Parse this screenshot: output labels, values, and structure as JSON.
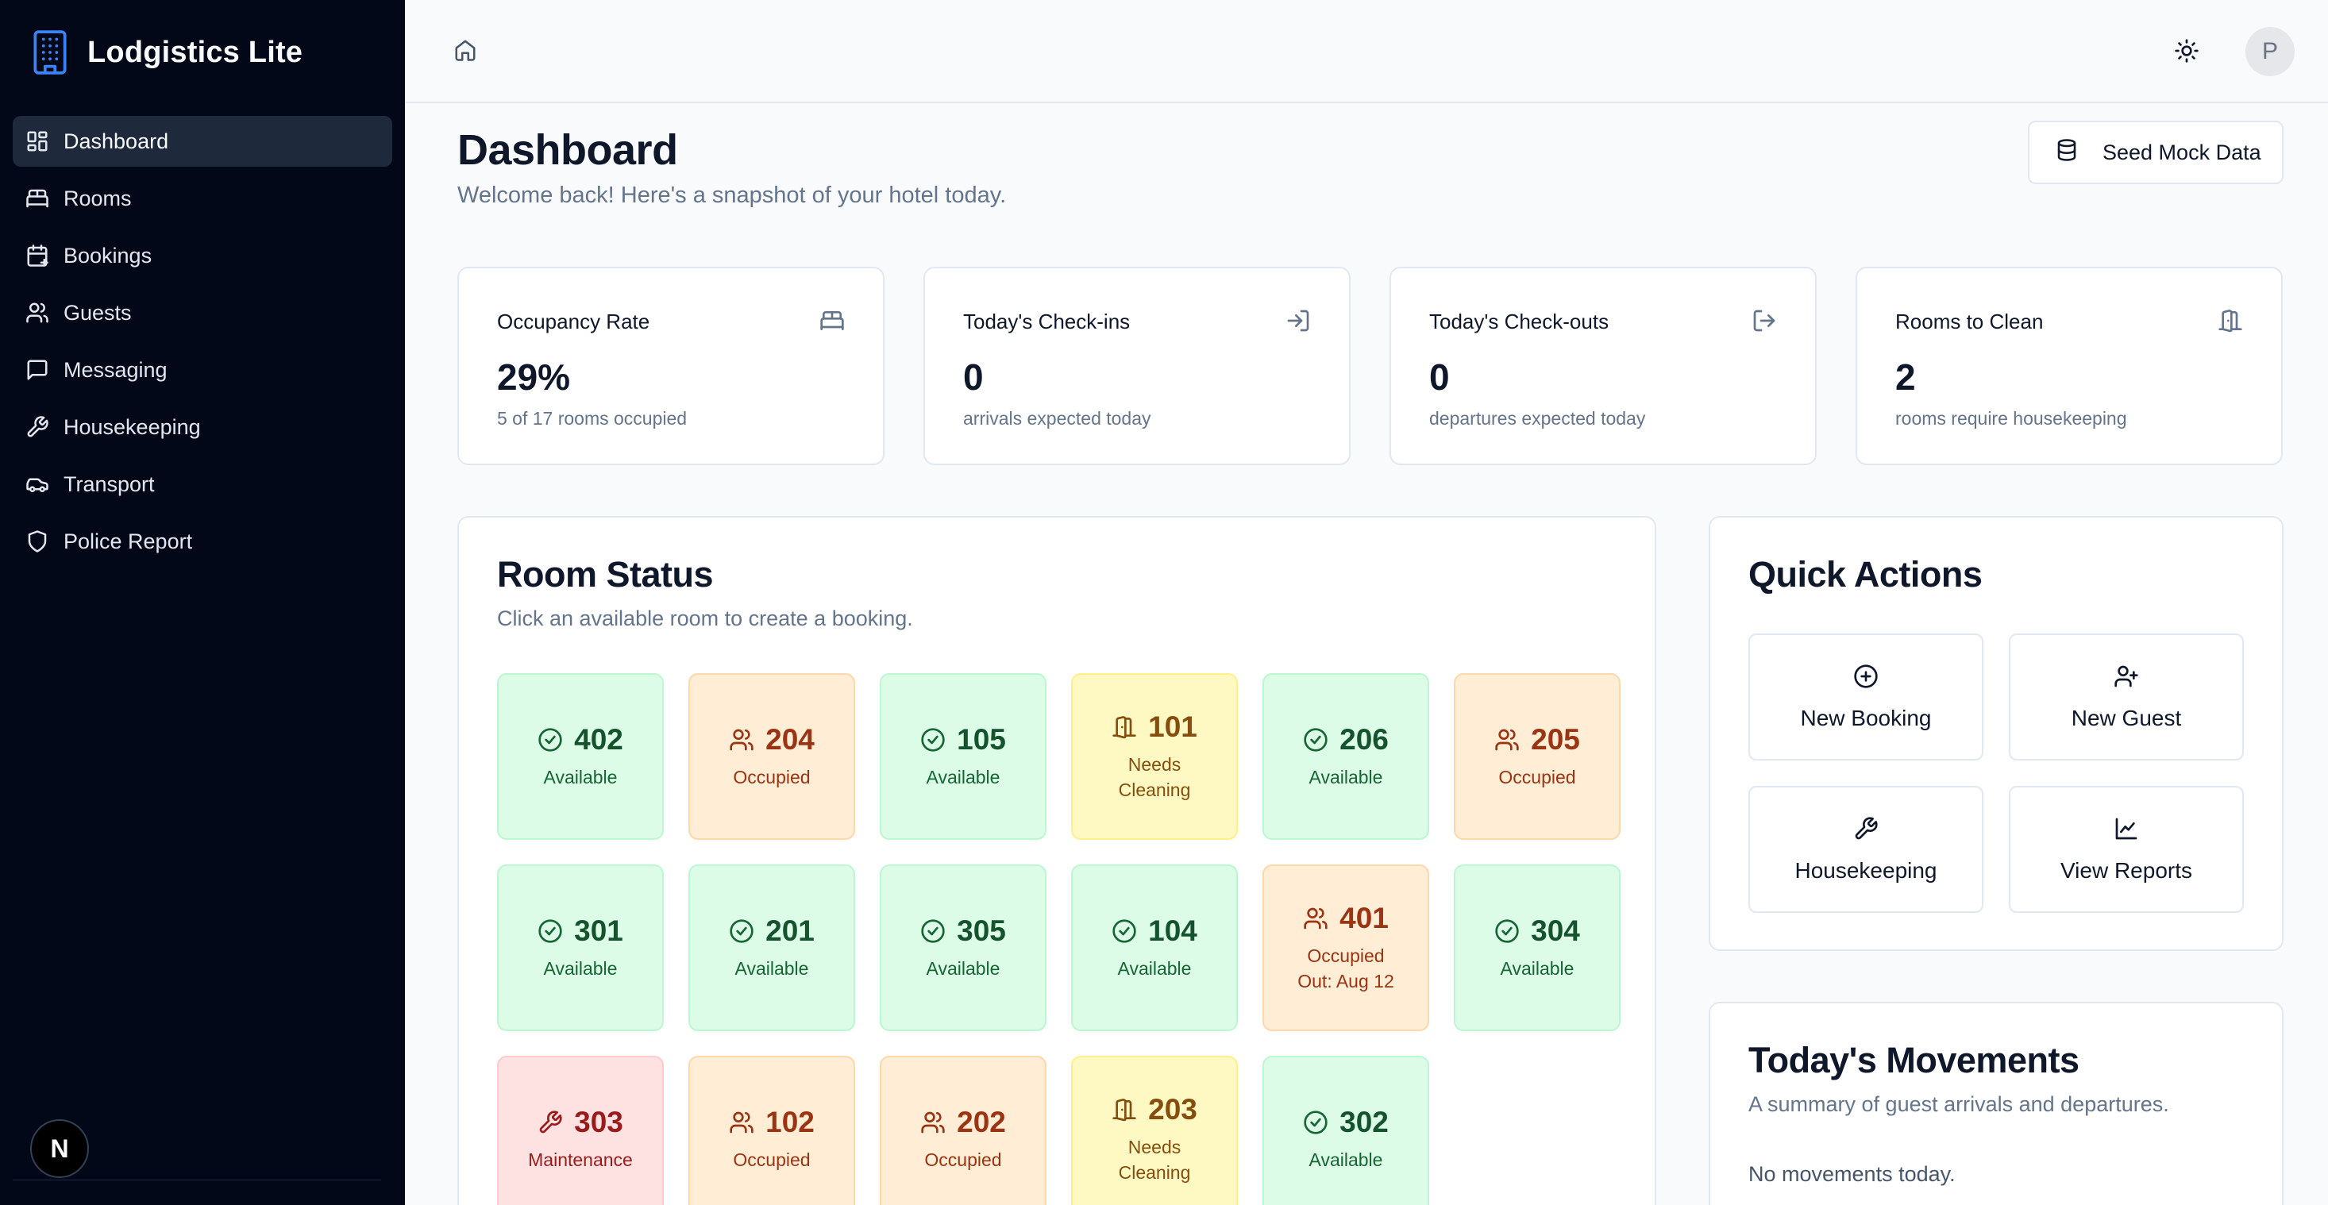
{
  "app": {
    "name": "Lodgistics Lite"
  },
  "sidebar": {
    "items": [
      {
        "label": "Dashboard",
        "icon": "dashboard-icon",
        "active": true
      },
      {
        "label": "Rooms",
        "icon": "bed-icon"
      },
      {
        "label": "Bookings",
        "icon": "calendar-icon"
      },
      {
        "label": "Guests",
        "icon": "users-icon"
      },
      {
        "label": "Messaging",
        "icon": "message-icon"
      },
      {
        "label": "Housekeeping",
        "icon": "wrench-icon"
      },
      {
        "label": "Transport",
        "icon": "car-icon"
      },
      {
        "label": "Police Report",
        "icon": "shield-icon"
      }
    ],
    "badge": "N"
  },
  "topbar": {
    "avatar_initial": "P"
  },
  "page": {
    "title": "Dashboard",
    "subtitle": "Welcome back! Here's a snapshot of your hotel today.",
    "seed_button": "Seed Mock Data"
  },
  "stats": [
    {
      "label": "Occupancy Rate",
      "value": "29%",
      "note": "5 of 17 rooms occupied",
      "icon": "bed-icon"
    },
    {
      "label": "Today's Check-ins",
      "value": "0",
      "note": "arrivals expected today",
      "icon": "log-in-icon"
    },
    {
      "label": "Today's Check-outs",
      "value": "0",
      "note": "departures expected today",
      "icon": "log-out-icon"
    },
    {
      "label": "Rooms to Clean",
      "value": "2",
      "note": "rooms require housekeeping",
      "icon": "door-icon"
    }
  ],
  "room_status": {
    "title": "Room Status",
    "subtitle": "Click an available room to create a booking.",
    "rooms": [
      {
        "number": "402",
        "status": "Available",
        "type": "available"
      },
      {
        "number": "204",
        "status": "Occupied",
        "type": "occupied"
      },
      {
        "number": "105",
        "status": "Available",
        "type": "available"
      },
      {
        "number": "101",
        "status": "Needs Cleaning",
        "type": "cleaning"
      },
      {
        "number": "206",
        "status": "Available",
        "type": "available"
      },
      {
        "number": "205",
        "status": "Occupied",
        "type": "occupied"
      },
      {
        "number": "301",
        "status": "Available",
        "type": "available"
      },
      {
        "number": "201",
        "status": "Available",
        "type": "available"
      },
      {
        "number": "305",
        "status": "Available",
        "type": "available"
      },
      {
        "number": "104",
        "status": "Available",
        "type": "available"
      },
      {
        "number": "401",
        "status": "Occupied",
        "extra": "Out: Aug 12",
        "type": "occupied"
      },
      {
        "number": "304",
        "status": "Available",
        "type": "available"
      },
      {
        "number": "303",
        "status": "Maintenance",
        "type": "maint"
      },
      {
        "number": "102",
        "status": "Occupied",
        "type": "occupied"
      },
      {
        "number": "202",
        "status": "Occupied",
        "type": "occupied"
      },
      {
        "number": "203",
        "status": "Needs Cleaning",
        "type": "cleaning"
      },
      {
        "number": "302",
        "status": "Available",
        "type": "available"
      }
    ]
  },
  "quick_actions": {
    "title": "Quick Actions",
    "items": [
      {
        "label": "New Booking",
        "icon": "plus-circle-icon"
      },
      {
        "label": "New Guest",
        "icon": "user-plus-icon"
      },
      {
        "label": "Housekeeping",
        "icon": "wrench-icon"
      },
      {
        "label": "View Reports",
        "icon": "chart-icon"
      }
    ]
  },
  "movements": {
    "title": "Today's Movements",
    "subtitle": "A summary of guest arrivals and departures.",
    "empty_text": "No movements today."
  }
}
